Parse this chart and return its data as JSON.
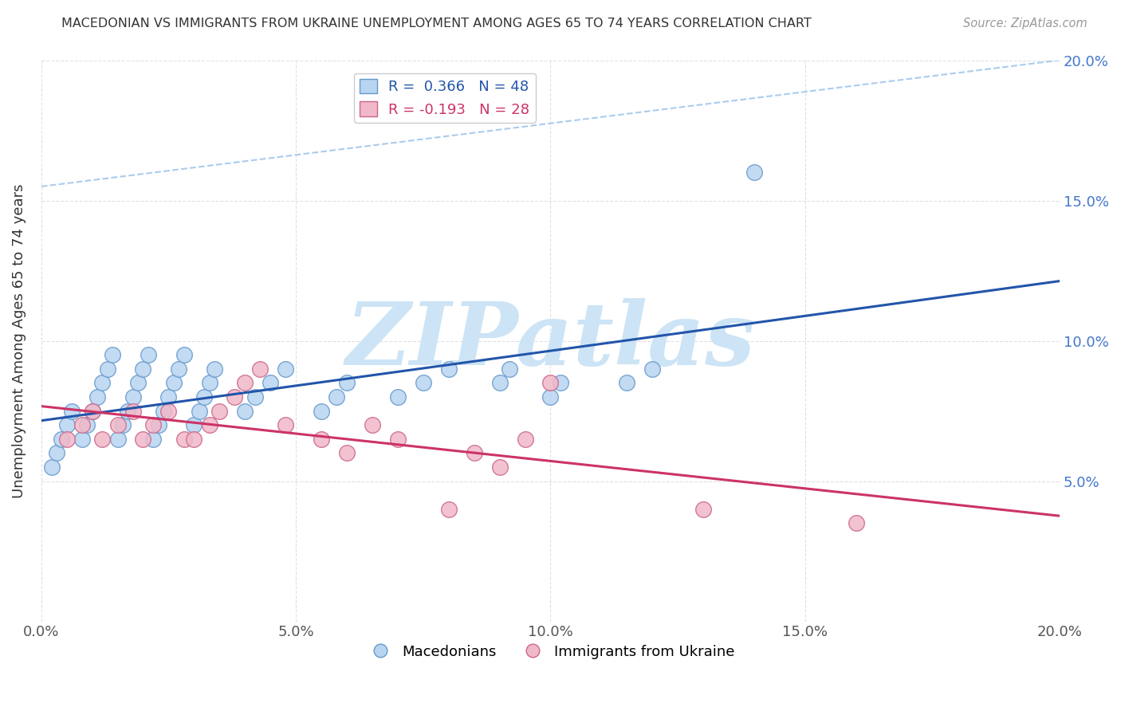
{
  "title": "MACEDONIAN VS IMMIGRANTS FROM UKRAINE UNEMPLOYMENT AMONG AGES 65 TO 74 YEARS CORRELATION CHART",
  "source": "Source: ZipAtlas.com",
  "ylabel": "Unemployment Among Ages 65 to 74 years",
  "xlim": [
    0.0,
    0.2
  ],
  "ylim": [
    0.0,
    0.2
  ],
  "x_ticks": [
    0.0,
    0.05,
    0.1,
    0.15,
    0.2
  ],
  "y_ticks": [
    0.0,
    0.05,
    0.1,
    0.15,
    0.2
  ],
  "x_tick_labels": [
    "0.0%",
    "5.0%",
    "10.0%",
    "15.0%",
    "20.0%"
  ],
  "right_tick_labels": [
    "",
    "5.0%",
    "10.0%",
    "15.0%",
    "20.0%"
  ],
  "macedonian_color": "#b8d4f0",
  "macedonian_edge": "#6699cc",
  "ukraine_color": "#f0b8c8",
  "ukraine_edge": "#cc6688",
  "macedonian_line_color": "#2255aa",
  "ukraine_line_color": "#cc3366",
  "dash_color": "#aaccee",
  "macedonian_R": 0.366,
  "macedonian_N": 48,
  "ukraine_R": -0.193,
  "ukraine_N": 28,
  "macedonian_x": [
    0.002,
    0.003,
    0.004,
    0.005,
    0.006,
    0.008,
    0.009,
    0.01,
    0.011,
    0.012,
    0.013,
    0.014,
    0.015,
    0.016,
    0.017,
    0.018,
    0.019,
    0.02,
    0.021,
    0.022,
    0.023,
    0.024,
    0.025,
    0.026,
    0.027,
    0.028,
    0.03,
    0.031,
    0.032,
    0.033,
    0.034,
    0.04,
    0.042,
    0.045,
    0.048,
    0.055,
    0.058,
    0.06,
    0.07,
    0.075,
    0.08,
    0.09,
    0.092,
    0.1,
    0.102,
    0.115,
    0.12,
    0.14
  ],
  "macedonian_y": [
    0.055,
    0.06,
    0.065,
    0.07,
    0.075,
    0.065,
    0.07,
    0.075,
    0.08,
    0.085,
    0.09,
    0.095,
    0.065,
    0.07,
    0.075,
    0.08,
    0.085,
    0.09,
    0.095,
    0.065,
    0.07,
    0.075,
    0.08,
    0.085,
    0.09,
    0.095,
    0.07,
    0.075,
    0.08,
    0.085,
    0.09,
    0.075,
    0.08,
    0.085,
    0.09,
    0.075,
    0.08,
    0.085,
    0.08,
    0.085,
    0.09,
    0.085,
    0.09,
    0.08,
    0.085,
    0.085,
    0.09,
    0.16
  ],
  "ukraine_x": [
    0.005,
    0.008,
    0.01,
    0.012,
    0.015,
    0.018,
    0.02,
    0.022,
    0.025,
    0.028,
    0.03,
    0.033,
    0.035,
    0.038,
    0.04,
    0.043,
    0.048,
    0.055,
    0.06,
    0.065,
    0.07,
    0.08,
    0.085,
    0.09,
    0.095,
    0.1,
    0.13,
    0.16
  ],
  "ukraine_y": [
    0.065,
    0.07,
    0.075,
    0.065,
    0.07,
    0.075,
    0.065,
    0.07,
    0.075,
    0.065,
    0.065,
    0.07,
    0.075,
    0.08,
    0.085,
    0.09,
    0.07,
    0.065,
    0.06,
    0.07,
    0.065,
    0.04,
    0.06,
    0.055,
    0.065,
    0.085,
    0.04,
    0.035
  ],
  "watermark_text": "ZIPatlas",
  "watermark_color": "#cce4f5",
  "legend_mac_label": "R =  0.366   N = 48",
  "legend_ukr_label": "R = -0.193   N = 28"
}
